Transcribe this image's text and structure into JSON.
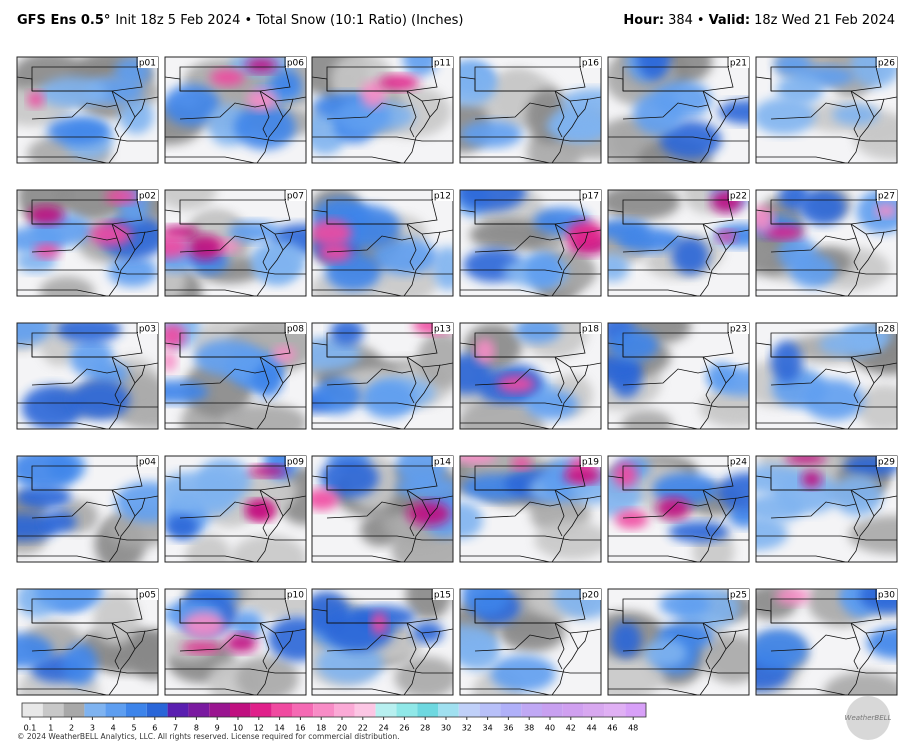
{
  "header": {
    "model": "GFS Ens 0.5°",
    "info": "Init 18z 5 Feb 2024 • Total Snow (10:1 Ratio) (Inches)",
    "hour_label": "Hour:",
    "hour": "384",
    "separator": "•",
    "valid_label": "Valid:",
    "valid": "18z Wed 21 Feb 2024"
  },
  "panels": [
    "p01",
    "p06",
    "p11",
    "p16",
    "p21",
    "p26",
    "p02",
    "p07",
    "p12",
    "p17",
    "p22",
    "p27",
    "p03",
    "p08",
    "p13",
    "p18",
    "p23",
    "p28",
    "p04",
    "p09",
    "p14",
    "p19",
    "p24",
    "p29",
    "p05",
    "p10",
    "p15",
    "p20",
    "p25",
    "p30"
  ],
  "colorbar": {
    "labels": [
      "0.1",
      "1",
      "2",
      "3",
      "4",
      "5",
      "6",
      "7",
      "8",
      "9",
      "10",
      "12",
      "14",
      "16",
      "18",
      "20",
      "22",
      "24",
      "26",
      "28",
      "30",
      "32",
      "34",
      "36",
      "38",
      "40",
      "42",
      "44",
      "46",
      "48"
    ],
    "colors": [
      "#e8e8e8",
      "#c8c8c8",
      "#a8a8a8",
      "#7fb3f0",
      "#5e9ef0",
      "#3d84ea",
      "#2a66d8",
      "#5a1fb0",
      "#7a1aa0",
      "#9a1590",
      "#c01080",
      "#e0208a",
      "#f04aa0",
      "#f56ab4",
      "#f88cc6",
      "#fbaad6",
      "#fcc6e4",
      "#b8f0f0",
      "#90e8e8",
      "#6ed8e0",
      "#a0e0f0",
      "#c0d0f8",
      "#b8c0f8",
      "#b0b0f8",
      "#c0a8f4",
      "#c8a0f0",
      "#d0a0f0",
      "#d8a8f0",
      "#e0b0f4",
      "#d8a0f8"
    ]
  },
  "footer": "© 2024 WeatherBELL Analytics, LLC. All rights reserved. License required for commercial distribution.",
  "logo": "WeatherBELL"
}
